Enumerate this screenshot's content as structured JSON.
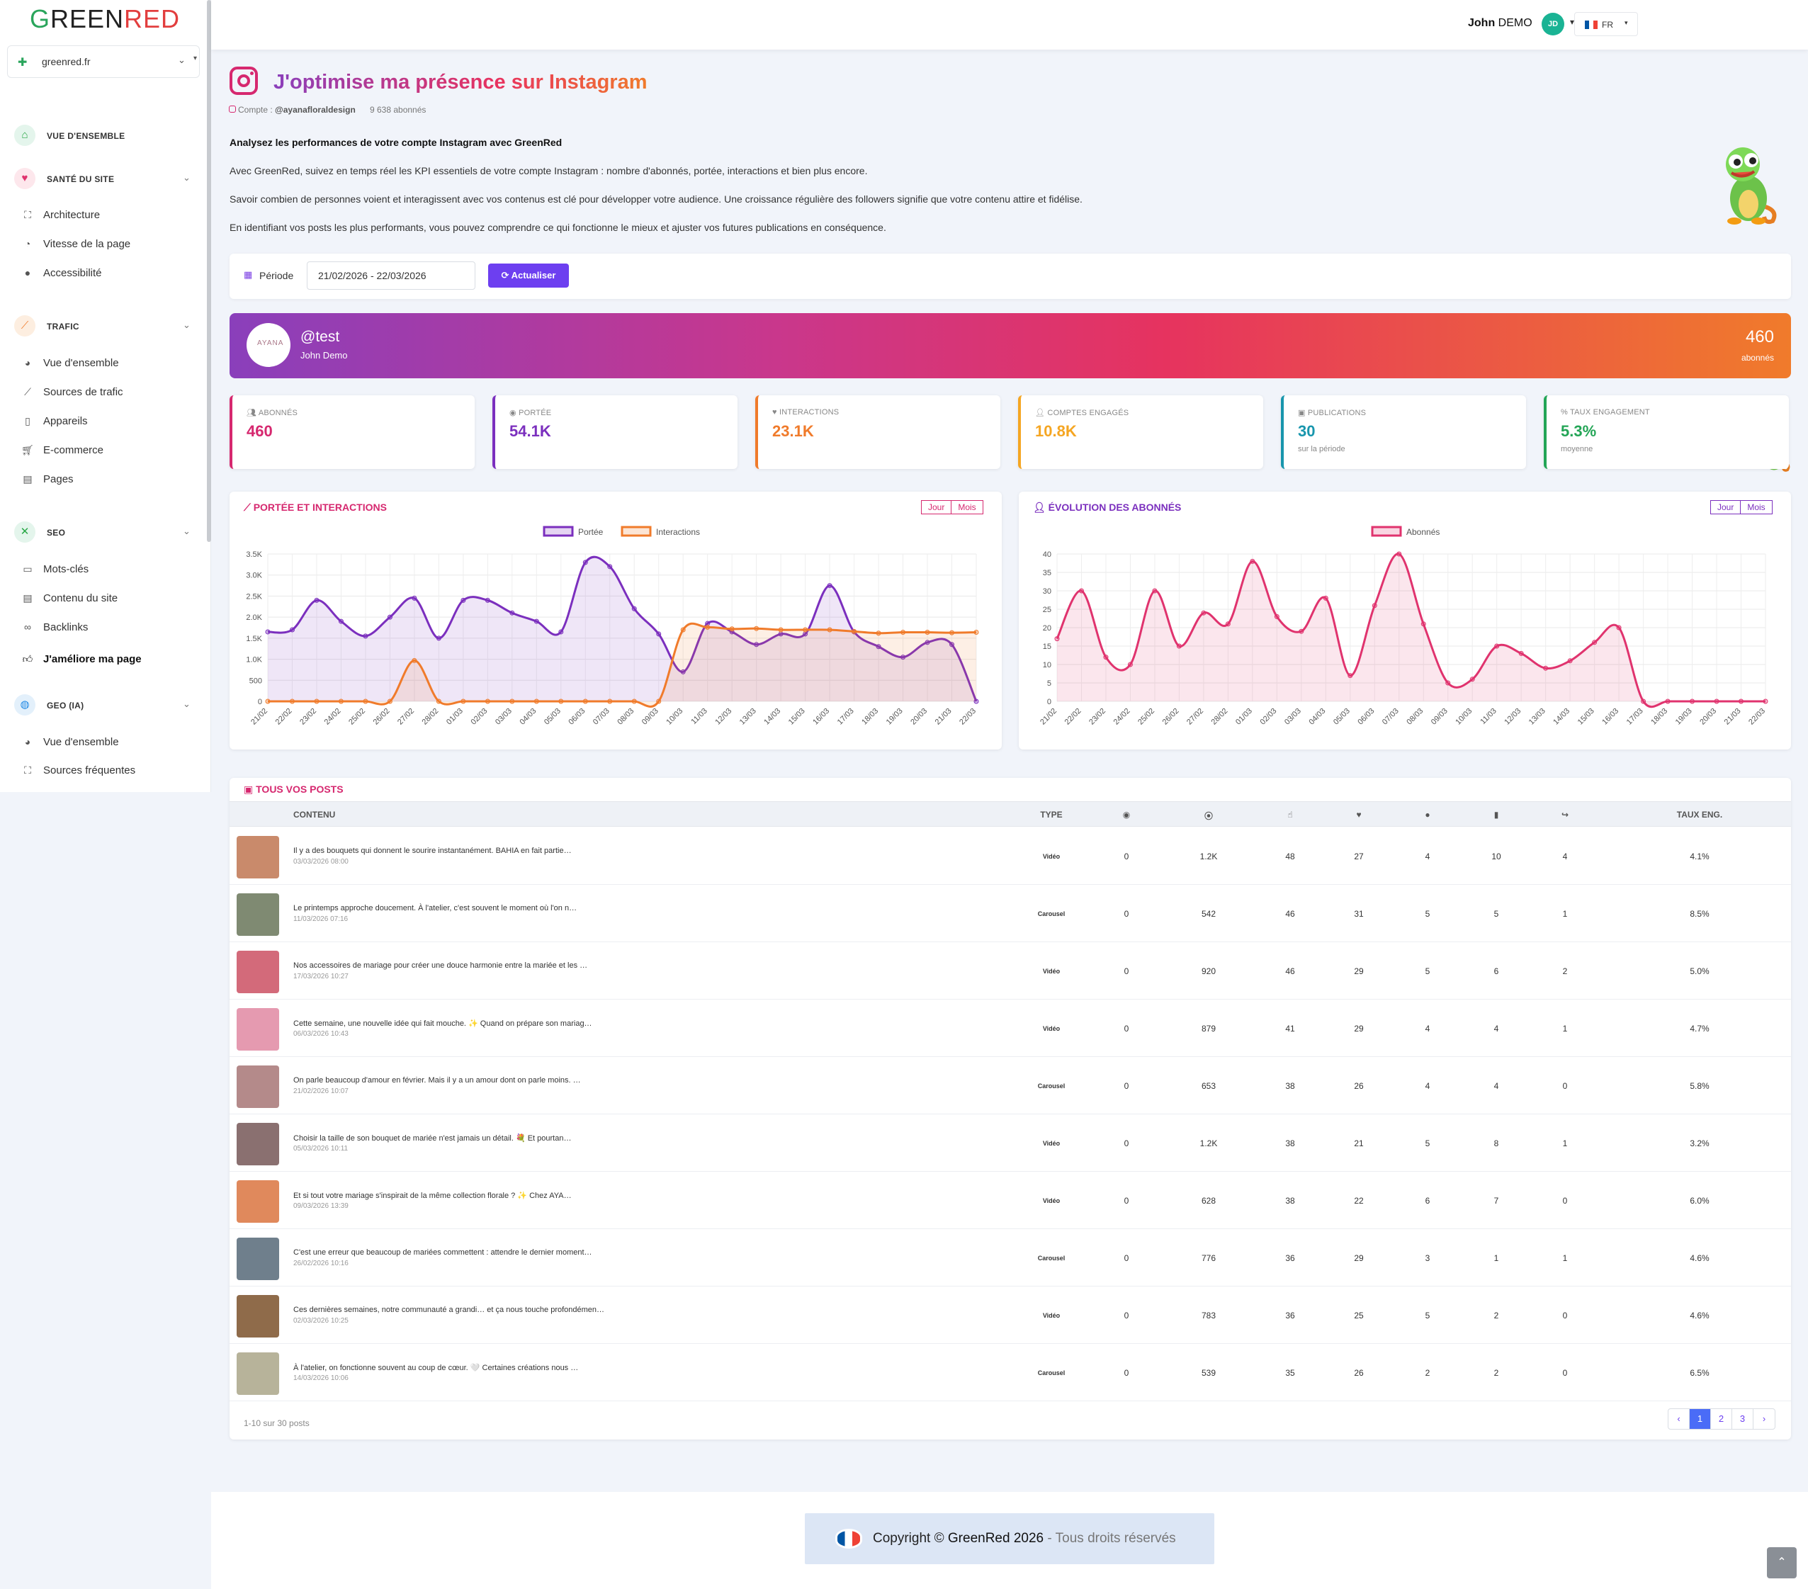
{
  "brand": {
    "logo": "GREENRED",
    "logo_parts": [
      "G",
      "REEN",
      "RED"
    ]
  },
  "site_selector": {
    "value": "greenred.fr"
  },
  "sidebar": {
    "sections": [
      {
        "label": "VUE D'ENSEMBLE",
        "icon": "home-icon",
        "items": []
      },
      {
        "label": "SANTÉ DU SITE",
        "icon": "heart-pulse-icon",
        "items": [
          {
            "label": "Architecture",
            "icon": "sitemap-icon"
          },
          {
            "label": "Vitesse de la page",
            "icon": "speedometer-icon"
          },
          {
            "label": "Accessibilité",
            "icon": "info-icon"
          }
        ]
      },
      {
        "label": "TRAFIC",
        "icon": "line-chart-icon",
        "items": [
          {
            "label": "Vue d'ensemble",
            "icon": "pie-chart-icon"
          },
          {
            "label": "Sources de trafic",
            "icon": "area-chart-icon"
          },
          {
            "label": "Appareils",
            "icon": "mobile-icon"
          },
          {
            "label": "E-commerce",
            "icon": "cart-icon"
          },
          {
            "label": "Pages",
            "icon": "file-icon"
          }
        ]
      },
      {
        "label": "SEO",
        "icon": "tools-icon",
        "items": [
          {
            "label": "Mots-clés",
            "icon": "keyboard-icon"
          },
          {
            "label": "Contenu du site",
            "icon": "document-icon"
          },
          {
            "label": "Backlinks",
            "icon": "link-icon"
          },
          {
            "label": "J'améliore ma page",
            "icon": "thumbs-up-icon"
          }
        ]
      },
      {
        "label": "GEO (IA)",
        "icon": "globe-icon",
        "items": [
          {
            "label": "Vue d'ensemble",
            "icon": "pie-chart-icon"
          },
          {
            "label": "Sources fréquentes",
            "icon": "sitemap-icon"
          }
        ]
      }
    ]
  },
  "topbar": {
    "lang": "FR",
    "user_first": "John",
    "user_last": "DEMO",
    "avatar": "JD"
  },
  "header": {
    "title": "J'optimise ma présence sur Instagram",
    "account_label": "Compte :",
    "account": "@ayanafloraldesign",
    "followers_text": "9 638 abonnés",
    "intro_title": "Analysez les performances de votre compte Instagram avec GreenRed",
    "intro_1": "Avec GreenRed, suivez en temps réel les KPI essentiels de votre compte Instagram : nombre d'abonnés, portée, interactions et bien plus encore.",
    "intro_2": "Savoir combien de personnes voient et interagissent avec vos contenus est clé pour développer votre audience. Une croissance régulière des followers signifie que votre contenu attire et fidélise.",
    "intro_3": "En identifiant vos posts les plus performants, vous pouvez comprendre ce qui fonctionne le mieux et ajuster vos futures publications en conséquence."
  },
  "period": {
    "label": "Période",
    "value": "21/02/2026 - 22/03/2026",
    "button": "Actualiser"
  },
  "profile": {
    "handle": "@test",
    "name": "John Demo",
    "avatar_text": "AYANA",
    "count": "460",
    "count_label": "abonnés"
  },
  "kpis": [
    {
      "label": "ABONNÉS",
      "value": "460",
      "sub": "",
      "color": "#d6286f",
      "icon": "users-icon"
    },
    {
      "label": "PORTÉE",
      "value": "54.1K",
      "sub": "",
      "color": "#7b2fbe",
      "icon": "eye-icon"
    },
    {
      "label": "INTERACTIONS",
      "value": "23.1K",
      "sub": "",
      "color": "#f07b2b",
      "icon": "heart-icon"
    },
    {
      "label": "COMPTES ENGAGÉS",
      "value": "10.8K",
      "sub": "",
      "color": "#f5a623",
      "icon": "user-check-icon"
    },
    {
      "label": "PUBLICATIONS",
      "value": "30",
      "sub": "sur la période",
      "color": "#1896ad",
      "icon": "images-icon"
    },
    {
      "label": "TAUX ENGAGEMENT",
      "value": "5.3%",
      "sub": "moyenne",
      "color": "#23a556",
      "icon": "percent-icon"
    }
  ],
  "charts": {
    "reach": {
      "title": "PORTÉE ET INTERACTIONS",
      "toggle": [
        "Jour",
        "Mois"
      ]
    },
    "followers": {
      "title": "ÉVOLUTION DES ABONNÉS",
      "toggle": [
        "Jour",
        "Mois"
      ]
    }
  },
  "chart_data": [
    {
      "type": "line",
      "title": "PORTÉE ET INTERACTIONS",
      "x": [
        "21/02",
        "22/02",
        "23/02",
        "24/02",
        "25/02",
        "26/02",
        "27/02",
        "28/02",
        "01/03",
        "02/03",
        "03/03",
        "04/03",
        "05/03",
        "06/03",
        "07/03",
        "08/03",
        "09/03",
        "10/03",
        "11/03",
        "12/03",
        "13/03",
        "14/03",
        "15/03",
        "16/03",
        "17/03",
        "18/03",
        "19/03",
        "20/03",
        "21/03",
        "22/03"
      ],
      "ylim": [
        0,
        3500
      ],
      "yticks": [
        "0",
        "500",
        "1.0K",
        "1.5K",
        "2.0K",
        "2.5K",
        "3.0K",
        "3.5K"
      ],
      "legend": "top",
      "series": [
        {
          "name": "Portée",
          "color": "#7b2fbe",
          "values": [
            1650,
            1700,
            2400,
            1900,
            1550,
            2000,
            2450,
            1500,
            2400,
            2400,
            2100,
            1900,
            1650,
            3300,
            3200,
            2200,
            1600,
            700,
            1850,
            1650,
            1350,
            1600,
            1600,
            2750,
            1650,
            1300,
            1050,
            1400,
            1350,
            0
          ]
        },
        {
          "name": "Interactions",
          "color": "#f07b2b",
          "values": [
            0,
            0,
            0,
            0,
            0,
            0,
            970,
            0,
            0,
            0,
            0,
            0,
            0,
            0,
            0,
            0,
            0,
            1700,
            1760,
            1720,
            1730,
            1700,
            1700,
            1700,
            1660,
            1620,
            1640,
            1640,
            1630,
            1640
          ]
        }
      ]
    },
    {
      "type": "line",
      "title": "ÉVOLUTION DES ABONNÉS",
      "x": [
        "21/02",
        "22/02",
        "23/02",
        "24/02",
        "25/02",
        "26/02",
        "27/02",
        "28/02",
        "01/03",
        "02/03",
        "03/03",
        "04/03",
        "05/03",
        "06/03",
        "07/03",
        "08/03",
        "09/03",
        "10/03",
        "11/03",
        "12/03",
        "13/03",
        "14/03",
        "15/03",
        "16/03",
        "17/03",
        "18/03",
        "19/03",
        "20/03",
        "21/03",
        "22/03"
      ],
      "ylim": [
        0,
        40
      ],
      "yticks": [
        "0",
        "5",
        "10",
        "15",
        "20",
        "25",
        "30",
        "35",
        "40"
      ],
      "legend": "top",
      "series": [
        {
          "name": "Abonnés",
          "color": "#e0336e",
          "values": [
            17,
            30,
            12,
            10,
            30,
            15,
            24,
            21,
            38,
            23,
            19,
            28,
            7,
            26,
            40,
            21,
            5,
            6,
            15,
            13,
            9,
            11,
            16,
            20,
            0,
            0,
            0,
            0,
            0,
            0
          ]
        }
      ]
    }
  ],
  "posts": {
    "title": "TOUS VOS POSTS",
    "headers": {
      "content": "CONTENU",
      "type": "TYPE",
      "rate": "TAUX ENG."
    },
    "rows": [
      {
        "text": "Il y a des bouquets qui donnent le sourire instantanément. BAHIA en fait partie…",
        "date": "03/03/2026 08:00",
        "type": "Vidéo",
        "views": "0",
        "reach": "1.2K",
        "engaged": "48",
        "likes": "27",
        "comments": "4",
        "saves": "10",
        "shares": "4",
        "rate": "4.1%",
        "thumb": "#c98a6b"
      },
      {
        "text": "Le printemps approche doucement. À l'atelier, c'est souvent le moment où l'on n…",
        "date": "11/03/2026 07:16",
        "type": "Carousel",
        "views": "0",
        "reach": "542",
        "engaged": "46",
        "likes": "31",
        "comments": "5",
        "saves": "5",
        "shares": "1",
        "rate": "8.5%",
        "thumb": "#7f8a72"
      },
      {
        "text": "Nos accessoires de mariage pour créer une douce harmonie entre la mariée et les …",
        "date": "17/03/2026 10:27",
        "type": "Vidéo",
        "views": "0",
        "reach": "920",
        "engaged": "46",
        "likes": "29",
        "comments": "5",
        "saves": "6",
        "shares": "2",
        "rate": "5.0%",
        "thumb": "#d36a7a"
      },
      {
        "text": "Cette semaine, une nouvelle idée qui fait mouche. ✨ Quand on prépare son mariag…",
        "date": "06/03/2026 10:43",
        "type": "Vidéo",
        "views": "0",
        "reach": "879",
        "engaged": "41",
        "likes": "29",
        "comments": "4",
        "saves": "4",
        "shares": "1",
        "rate": "4.7%",
        "thumb": "#e59ab0"
      },
      {
        "text": "On parle beaucoup d'amour en février. Mais il y a un amour dont on parle moins. …",
        "date": "21/02/2026 10:07",
        "type": "Carousel",
        "views": "0",
        "reach": "653",
        "engaged": "38",
        "likes": "26",
        "comments": "4",
        "saves": "4",
        "shares": "0",
        "rate": "5.8%",
        "thumb": "#b48a8a"
      },
      {
        "text": "Choisir la taille de son bouquet de mariée n'est jamais un détail. 💐 Et pourtan…",
        "date": "05/03/2026 10:11",
        "type": "Vidéo",
        "views": "0",
        "reach": "1.2K",
        "engaged": "38",
        "likes": "21",
        "comments": "5",
        "saves": "8",
        "shares": "1",
        "rate": "3.2%",
        "thumb": "#8a7070"
      },
      {
        "text": "Et si tout votre mariage s'inspirait de la même collection florale ? ✨ Chez AYA…",
        "date": "09/03/2026 13:39",
        "type": "Vidéo",
        "views": "0",
        "reach": "628",
        "engaged": "38",
        "likes": "22",
        "comments": "6",
        "saves": "7",
        "shares": "0",
        "rate": "6.0%",
        "thumb": "#e0895c"
      },
      {
        "text": "C'est une erreur que beaucoup de mariées commettent : attendre le dernier moment…",
        "date": "26/02/2026 10:16",
        "type": "Carousel",
        "views": "0",
        "reach": "776",
        "engaged": "36",
        "likes": "29",
        "comments": "3",
        "saves": "1",
        "shares": "1",
        "rate": "4.6%",
        "thumb": "#6f7f8c"
      },
      {
        "text": "Ces dernières semaines, notre communauté a grandi… et ça nous touche profondémen…",
        "date": "02/03/2026 10:25",
        "type": "Vidéo",
        "views": "0",
        "reach": "783",
        "engaged": "36",
        "likes": "25",
        "comments": "5",
        "saves": "2",
        "shares": "0",
        "rate": "4.6%",
        "thumb": "#8f6b4a"
      },
      {
        "text": "À l'atelier, on fonctionne souvent au coup de cœur. 🤍 Certaines créations nous …",
        "date": "14/03/2026 10:06",
        "type": "Carousel",
        "views": "0",
        "reach": "539",
        "engaged": "35",
        "likes": "26",
        "comments": "2",
        "saves": "2",
        "shares": "0",
        "rate": "6.5%",
        "thumb": "#b7b39a"
      }
    ],
    "pagination_info": "1-10 sur 30 posts",
    "pages": [
      "1",
      "2",
      "3"
    ]
  },
  "footer": {
    "copyright": "Copyright ©",
    "brand": "GreenRed 2026",
    "rights": "- Tous droits réservés"
  }
}
